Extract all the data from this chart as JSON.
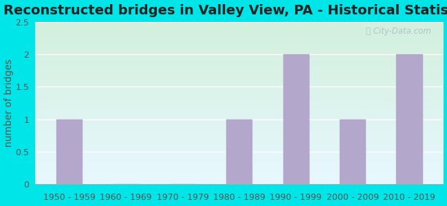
{
  "title": "Reconstructed bridges in Valley View, PA - Historical Statistics",
  "categories": [
    "1950 - 1959",
    "1960 - 1969",
    "1970 - 1979",
    "1980 - 1989",
    "1990 - 1999",
    "2000 - 2009",
    "2010 - 2019"
  ],
  "values": [
    1,
    0,
    0,
    1,
    2,
    1,
    2
  ],
  "bar_color": "#b3a8cc",
  "ylabel": "number of bridges",
  "ylim": [
    0,
    2.5
  ],
  "yticks": [
    0,
    0.5,
    1,
    1.5,
    2,
    2.5
  ],
  "background_outer": "#00e5e8",
  "background_top": "#e8f8ff",
  "background_bottom": "#d8f5e0",
  "title_fontsize": 14,
  "axis_label_fontsize": 10,
  "tick_fontsize": 9,
  "watermark_text": "City-Data.com",
  "watermark_color": "#aabbcc",
  "grid_color": "#ffffff",
  "tick_color": "#555555",
  "title_color": "#222222"
}
